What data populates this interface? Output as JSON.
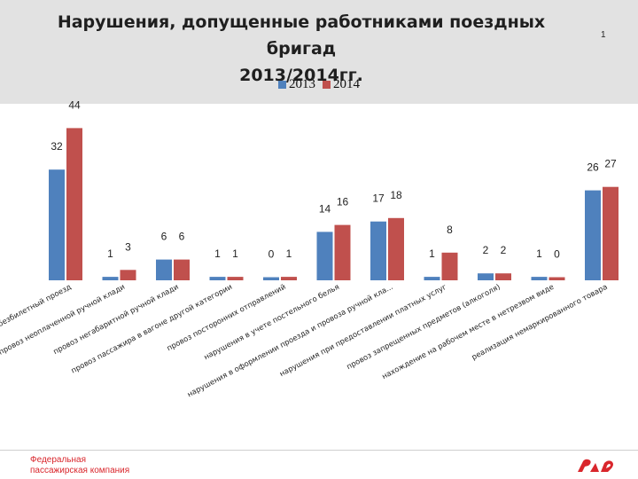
{
  "slide": {
    "title_line1": "Нарушения, допущенные работниками поездных бригад",
    "title_line2": "2013/2014гг.",
    "page_number": "1",
    "footer_line1": "Федеральная",
    "footer_line2": "пассажирская компания",
    "logo_text": "РЖД"
  },
  "colors": {
    "series_2013": "#4f81bd",
    "series_2014": "#c0504d",
    "header_band": "#e2e2e2",
    "brand_red": "#d9262c"
  },
  "chart_data": {
    "type": "bar",
    "title": "Нарушения, допущенные работниками поездных бригад 2013/2014гг.",
    "legend_position": "top-center",
    "gridlines": false,
    "ylim": [
      0,
      50
    ],
    "categories": [
      "безбилетный проезд",
      "провоз неоплаченной ручной клади",
      "провоз негабаритной ручной клади",
      "провоз пассажира в вагоне другой категории",
      "провоз посторонних отправлений",
      "нарушения в учете постельного белья",
      "нарушения в оформлении проезда и провоза ручной кла...",
      "нарушения при предоставлении платных услуг",
      "провоз запрещенных предметов (алкоголя)",
      "нахождение на рабочем месте в нетрезвом виде",
      "реализация немаркированного товара"
    ],
    "series": [
      {
        "name": "2013",
        "values": [
          32,
          1,
          6,
          1,
          0,
          14,
          17,
          1,
          2,
          1,
          26
        ]
      },
      {
        "name": "2014",
        "values": [
          44,
          3,
          6,
          1,
          1,
          16,
          18,
          8,
          2,
          0,
          27
        ]
      }
    ]
  }
}
